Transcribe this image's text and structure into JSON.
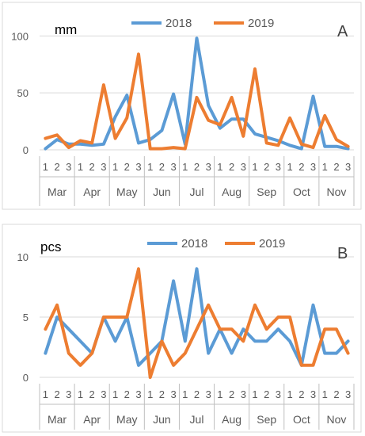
{
  "chart_data": [
    {
      "type": "line",
      "panel_label": "A",
      "unit_label": "mm",
      "ylim": [
        0,
        110
      ],
      "yticks": [
        0,
        50,
        100
      ],
      "grid": true,
      "legend_position": "top",
      "sub_ticks": [
        "1",
        "2",
        "3"
      ],
      "months": [
        "Mar",
        "Apr",
        "May",
        "Jun",
        "Jul",
        "Aug",
        "Sep",
        "Oct",
        "Nov"
      ],
      "series": [
        {
          "name": "2018",
          "color": "#5b9bd5",
          "values": [
            1,
            9,
            5,
            5,
            4,
            5,
            29,
            48,
            6,
            9,
            17,
            49,
            5,
            98,
            39,
            19,
            27,
            27,
            14,
            11,
            8,
            4,
            1,
            47,
            3,
            3,
            1
          ]
        },
        {
          "name": "2019",
          "color": "#ed7d31",
          "values": [
            10,
            13,
            2,
            8,
            6,
            57,
            10,
            28,
            84,
            1,
            1,
            2,
            1,
            46,
            26,
            22,
            46,
            12,
            71,
            6,
            4,
            28,
            5,
            2,
            30,
            9,
            3
          ]
        }
      ]
    },
    {
      "type": "line",
      "panel_label": "B",
      "unit_label": "pcs",
      "ylim": [
        0,
        10
      ],
      "yticks": [
        0,
        5,
        10
      ],
      "grid": true,
      "legend_position": "top",
      "sub_ticks": [
        "1",
        "2",
        "3"
      ],
      "months": [
        "Mar",
        "Apr",
        "May",
        "Jun",
        "Jul",
        "Aug",
        "Sep",
        "Oct",
        "Nov"
      ],
      "series": [
        {
          "name": "2018",
          "color": "#5b9bd5",
          "values": [
            2,
            5,
            4,
            3,
            2,
            5,
            3,
            5,
            1,
            2,
            3,
            8,
            3,
            9,
            2,
            4,
            2,
            4,
            3,
            3,
            4,
            3,
            1,
            6,
            2,
            2,
            3
          ]
        },
        {
          "name": "2019",
          "color": "#ed7d31",
          "values": [
            4,
            6,
            2,
            1,
            2,
            5,
            5,
            5,
            9,
            0,
            3,
            1,
            2,
            4,
            6,
            4,
            4,
            3,
            6,
            4,
            5,
            5,
            1,
            1,
            4,
            4,
            2
          ]
        }
      ]
    }
  ]
}
